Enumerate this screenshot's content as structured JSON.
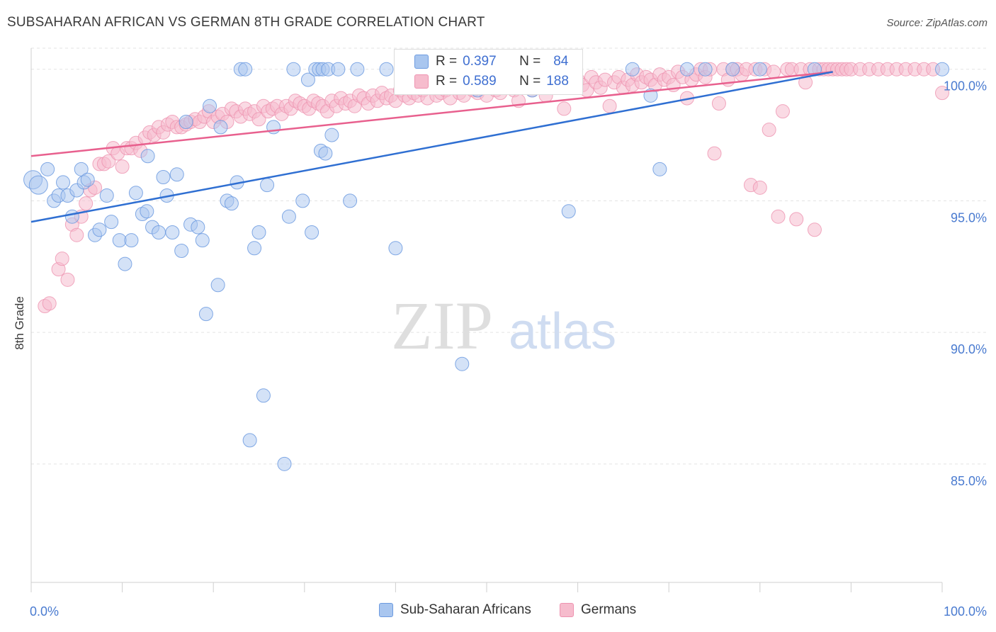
{
  "header": {
    "title": "SUBSAHARAN AFRICAN VS GERMAN 8TH GRADE CORRELATION CHART",
    "source": "Source: ZipAtlas.com"
  },
  "watermark": {
    "zip": "ZIP",
    "atlas": "atlas"
  },
  "legend_box": {
    "rows": [
      {
        "r_label": "R =",
        "r_value": "0.397",
        "n_label": "N =",
        "n_value": "84"
      },
      {
        "r_label": "R =",
        "r_value": "0.589",
        "n_label": "N =",
        "n_value": "188"
      }
    ]
  },
  "colors": {
    "blue_fill": "#a9c6ef",
    "blue_stroke": "#6d9be0",
    "blue_line": "#2f6fd2",
    "pink_fill": "#f6bccd",
    "pink_stroke": "#ee93b0",
    "pink_line": "#e8608e",
    "tick_text": "#4a7bd0",
    "grid": "#e3e3e3"
  },
  "chart_data": {
    "type": "scatter",
    "title": "SUBSAHARAN AFRICAN VS GERMAN 8TH GRADE CORRELATION CHART",
    "xlabel": "",
    "ylabel": "8th Grade",
    "xlim": [
      0,
      100
    ],
    "ylim": [
      80.5,
      100.8
    ],
    "x_tick_labels": [
      "0.0%",
      "100.0%"
    ],
    "y_ticks": [
      85,
      90,
      95,
      100
    ],
    "y_tick_labels": [
      "85.0%",
      "90.0%",
      "95.0%",
      "100.0%"
    ],
    "grid": true,
    "legend": [
      "Sub-Saharan Africans",
      "Germans"
    ],
    "series": [
      {
        "name": "Sub-Saharan Africans",
        "r": 0.397,
        "n": 84,
        "trend": {
          "x": [
            0,
            88
          ],
          "y": [
            94.2,
            99.9
          ]
        },
        "points": [
          [
            0.2,
            95.8
          ],
          [
            0.8,
            95.6
          ],
          [
            1.8,
            96.2
          ],
          [
            2.5,
            95.0
          ],
          [
            3.0,
            95.2
          ],
          [
            3.5,
            95.7
          ],
          [
            4.0,
            95.2
          ],
          [
            4.5,
            94.4
          ],
          [
            5.0,
            95.4
          ],
          [
            5.5,
            96.2
          ],
          [
            5.8,
            95.7
          ],
          [
            6.2,
            95.8
          ],
          [
            7.0,
            93.7
          ],
          [
            7.5,
            93.9
          ],
          [
            8.3,
            95.2
          ],
          [
            8.8,
            94.2
          ],
          [
            9.7,
            93.5
          ],
          [
            10.3,
            92.6
          ],
          [
            11.0,
            93.5
          ],
          [
            11.5,
            95.3
          ],
          [
            12.2,
            94.5
          ],
          [
            12.7,
            94.6
          ],
          [
            12.8,
            96.7
          ],
          [
            13.3,
            94.0
          ],
          [
            14.0,
            93.8
          ],
          [
            14.5,
            95.9
          ],
          [
            14.9,
            95.2
          ],
          [
            15.5,
            93.8
          ],
          [
            16.0,
            96.0
          ],
          [
            16.5,
            93.1
          ],
          [
            17.0,
            98.0
          ],
          [
            17.5,
            94.1
          ],
          [
            18.3,
            94.0
          ],
          [
            18.8,
            93.5
          ],
          [
            19.2,
            90.7
          ],
          [
            19.6,
            98.6
          ],
          [
            20.5,
            91.8
          ],
          [
            20.8,
            97.8
          ],
          [
            21.5,
            95.0
          ],
          [
            22.0,
            94.9
          ],
          [
            22.6,
            95.7
          ],
          [
            23.0,
            100.0
          ],
          [
            23.5,
            100.0
          ],
          [
            24.0,
            85.9
          ],
          [
            24.5,
            93.2
          ],
          [
            25.0,
            93.8
          ],
          [
            25.5,
            87.6
          ],
          [
            25.9,
            95.6
          ],
          [
            26.6,
            97.8
          ],
          [
            27.8,
            85.0
          ],
          [
            28.3,
            94.4
          ],
          [
            28.8,
            100.0
          ],
          [
            29.8,
            95.0
          ],
          [
            30.4,
            99.6
          ],
          [
            30.8,
            93.8
          ],
          [
            31.2,
            100.0
          ],
          [
            31.6,
            100.0
          ],
          [
            32.0,
            100.0
          ],
          [
            31.8,
            96.9
          ],
          [
            32.3,
            96.8
          ],
          [
            32.6,
            100.0
          ],
          [
            33.0,
            97.5
          ],
          [
            33.7,
            100.0
          ],
          [
            35.0,
            95.0
          ],
          [
            35.8,
            100.0
          ],
          [
            39.0,
            100.0
          ],
          [
            40.0,
            93.2
          ],
          [
            42.0,
            100.0
          ],
          [
            46.0,
            100.0
          ],
          [
            47.3,
            88.8
          ],
          [
            48.0,
            100.0
          ],
          [
            49.0,
            99.2
          ],
          [
            52.0,
            100.0
          ],
          [
            55.0,
            99.2
          ],
          [
            59.0,
            94.6
          ],
          [
            66.0,
            100.0
          ],
          [
            68.0,
            99.0
          ],
          [
            69.0,
            96.2
          ],
          [
            72.0,
            100.0
          ],
          [
            74.0,
            100.0
          ],
          [
            77.0,
            100.0
          ],
          [
            80.0,
            100.0
          ],
          [
            86.0,
            100.0
          ],
          [
            100.0,
            100.0
          ]
        ]
      },
      {
        "name": "Germans",
        "r": 0.589,
        "n": 188,
        "trend": {
          "x": [
            0,
            88
          ],
          "y": [
            96.7,
            99.9
          ]
        },
        "points": [
          [
            1.5,
            91.0
          ],
          [
            2.0,
            91.1
          ],
          [
            3.0,
            92.4
          ],
          [
            3.4,
            92.8
          ],
          [
            4.0,
            92.0
          ],
          [
            4.5,
            94.1
          ],
          [
            5.0,
            93.7
          ],
          [
            5.5,
            94.4
          ],
          [
            6.0,
            94.9
          ],
          [
            6.5,
            95.4
          ],
          [
            7.0,
            95.5
          ],
          [
            7.5,
            96.4
          ],
          [
            8.0,
            96.4
          ],
          [
            8.5,
            96.5
          ],
          [
            9.0,
            97.0
          ],
          [
            9.5,
            96.8
          ],
          [
            10.0,
            96.3
          ],
          [
            10.5,
            97.0
          ],
          [
            11.0,
            97.0
          ],
          [
            11.5,
            97.2
          ],
          [
            12.0,
            96.9
          ],
          [
            12.5,
            97.4
          ],
          [
            13.0,
            97.6
          ],
          [
            13.5,
            97.5
          ],
          [
            14.0,
            97.8
          ],
          [
            14.5,
            97.6
          ],
          [
            15.0,
            97.9
          ],
          [
            15.5,
            98.0
          ],
          [
            16.0,
            97.8
          ],
          [
            16.5,
            97.8
          ],
          [
            17.0,
            97.9
          ],
          [
            17.5,
            98.0
          ],
          [
            18.0,
            98.1
          ],
          [
            18.5,
            98.0
          ],
          [
            19.0,
            98.2
          ],
          [
            19.5,
            98.4
          ],
          [
            20.0,
            98.0
          ],
          [
            20.5,
            98.2
          ],
          [
            21.0,
            98.3
          ],
          [
            21.5,
            98.0
          ],
          [
            22.0,
            98.5
          ],
          [
            22.5,
            98.4
          ],
          [
            23.0,
            98.2
          ],
          [
            23.5,
            98.5
          ],
          [
            24.0,
            98.3
          ],
          [
            24.5,
            98.4
          ],
          [
            25.0,
            98.1
          ],
          [
            25.5,
            98.6
          ],
          [
            26.0,
            98.4
          ],
          [
            26.5,
            98.5
          ],
          [
            27.0,
            98.6
          ],
          [
            27.5,
            98.3
          ],
          [
            28.0,
            98.6
          ],
          [
            28.5,
            98.5
          ],
          [
            29.0,
            98.8
          ],
          [
            29.5,
            98.7
          ],
          [
            30.0,
            98.6
          ],
          [
            30.5,
            98.5
          ],
          [
            31.0,
            98.8
          ],
          [
            31.5,
            98.7
          ],
          [
            32.0,
            98.6
          ],
          [
            32.5,
            98.4
          ],
          [
            33.0,
            98.8
          ],
          [
            33.5,
            98.6
          ],
          [
            34.0,
            98.9
          ],
          [
            34.5,
            98.7
          ],
          [
            35.0,
            98.8
          ],
          [
            35.5,
            98.6
          ],
          [
            36.0,
            99.0
          ],
          [
            36.5,
            98.9
          ],
          [
            37.0,
            98.7
          ],
          [
            37.5,
            99.0
          ],
          [
            38.0,
            98.8
          ],
          [
            38.5,
            99.1
          ],
          [
            39.0,
            98.9
          ],
          [
            39.5,
            99.0
          ],
          [
            40.0,
            98.8
          ],
          [
            40.5,
            99.2
          ],
          [
            41.0,
            99.0
          ],
          [
            41.5,
            98.9
          ],
          [
            42.0,
            99.1
          ],
          [
            42.5,
            99.0
          ],
          [
            43.0,
            99.2
          ],
          [
            43.5,
            98.9
          ],
          [
            44.0,
            99.3
          ],
          [
            44.5,
            99.0
          ],
          [
            45.0,
            99.1
          ],
          [
            45.5,
            99.2
          ],
          [
            46.0,
            98.9
          ],
          [
            46.5,
            99.3
          ],
          [
            47.0,
            99.1
          ],
          [
            47.5,
            99.0
          ],
          [
            48.0,
            99.4
          ],
          [
            48.5,
            99.2
          ],
          [
            49.0,
            99.1
          ],
          [
            49.5,
            99.3
          ],
          [
            50.0,
            99.0
          ],
          [
            50.5,
            99.4
          ],
          [
            51.0,
            99.2
          ],
          [
            51.5,
            99.1
          ],
          [
            52.0,
            99.5
          ],
          [
            52.5,
            99.3
          ],
          [
            53.0,
            99.2
          ],
          [
            53.5,
            98.8
          ],
          [
            54.0,
            99.4
          ],
          [
            54.5,
            99.3
          ],
          [
            55.0,
            99.2
          ],
          [
            55.5,
            99.5
          ],
          [
            56.0,
            99.4
          ],
          [
            56.5,
            99.0
          ],
          [
            57.0,
            99.3
          ],
          [
            57.5,
            99.6
          ],
          [
            58.0,
            99.4
          ],
          [
            58.5,
            98.5
          ],
          [
            59.0,
            99.5
          ],
          [
            59.5,
            99.3
          ],
          [
            60.0,
            99.6
          ],
          [
            60.5,
            99.4
          ],
          [
            61.0,
            99.2
          ],
          [
            61.5,
            99.7
          ],
          [
            62.0,
            99.5
          ],
          [
            62.5,
            99.3
          ],
          [
            63.0,
            99.6
          ],
          [
            63.5,
            98.6
          ],
          [
            64.0,
            99.5
          ],
          [
            64.5,
            99.7
          ],
          [
            65.0,
            99.3
          ],
          [
            65.5,
            99.6
          ],
          [
            66.0,
            99.4
          ],
          [
            66.5,
            99.8
          ],
          [
            67.0,
            99.5
          ],
          [
            67.5,
            99.7
          ],
          [
            68.0,
            99.6
          ],
          [
            68.5,
            99.4
          ],
          [
            69.0,
            99.8
          ],
          [
            69.5,
            99.6
          ],
          [
            70.0,
            99.7
          ],
          [
            70.5,
            99.4
          ],
          [
            71.0,
            99.9
          ],
          [
            71.5,
            99.7
          ],
          [
            72.0,
            98.9
          ],
          [
            72.5,
            99.6
          ],
          [
            73.0,
            99.8
          ],
          [
            73.5,
            100.0
          ],
          [
            74.0,
            99.7
          ],
          [
            74.5,
            100.0
          ],
          [
            75.0,
            96.8
          ],
          [
            75.5,
            98.7
          ],
          [
            76.0,
            100.0
          ],
          [
            76.5,
            99.6
          ],
          [
            77.0,
            100.0
          ],
          [
            77.5,
            100.0
          ],
          [
            78.0,
            99.8
          ],
          [
            78.5,
            100.0
          ],
          [
            79.0,
            95.6
          ],
          [
            79.5,
            100.0
          ],
          [
            80.0,
            95.5
          ],
          [
            80.5,
            100.0
          ],
          [
            81.0,
            97.7
          ],
          [
            81.5,
            99.9
          ],
          [
            82.0,
            94.4
          ],
          [
            82.5,
            98.4
          ],
          [
            83.0,
            100.0
          ],
          [
            83.5,
            100.0
          ],
          [
            84.0,
            94.3
          ],
          [
            84.5,
            100.0
          ],
          [
            85.0,
            99.5
          ],
          [
            85.5,
            100.0
          ],
          [
            86.0,
            93.9
          ],
          [
            86.5,
            100.0
          ],
          [
            87.0,
            100.0
          ],
          [
            87.5,
            100.0
          ],
          [
            88.0,
            100.0
          ],
          [
            88.5,
            100.0
          ],
          [
            89.0,
            100.0
          ],
          [
            89.5,
            100.0
          ],
          [
            90.0,
            100.0
          ],
          [
            91.0,
            100.0
          ],
          [
            92.0,
            100.0
          ],
          [
            93.0,
            100.0
          ],
          [
            94.0,
            100.0
          ],
          [
            95.0,
            100.0
          ],
          [
            96.0,
            100.0
          ],
          [
            97.0,
            100.0
          ],
          [
            98.0,
            100.0
          ],
          [
            99.0,
            100.0
          ],
          [
            100.0,
            99.1
          ]
        ]
      }
    ]
  }
}
